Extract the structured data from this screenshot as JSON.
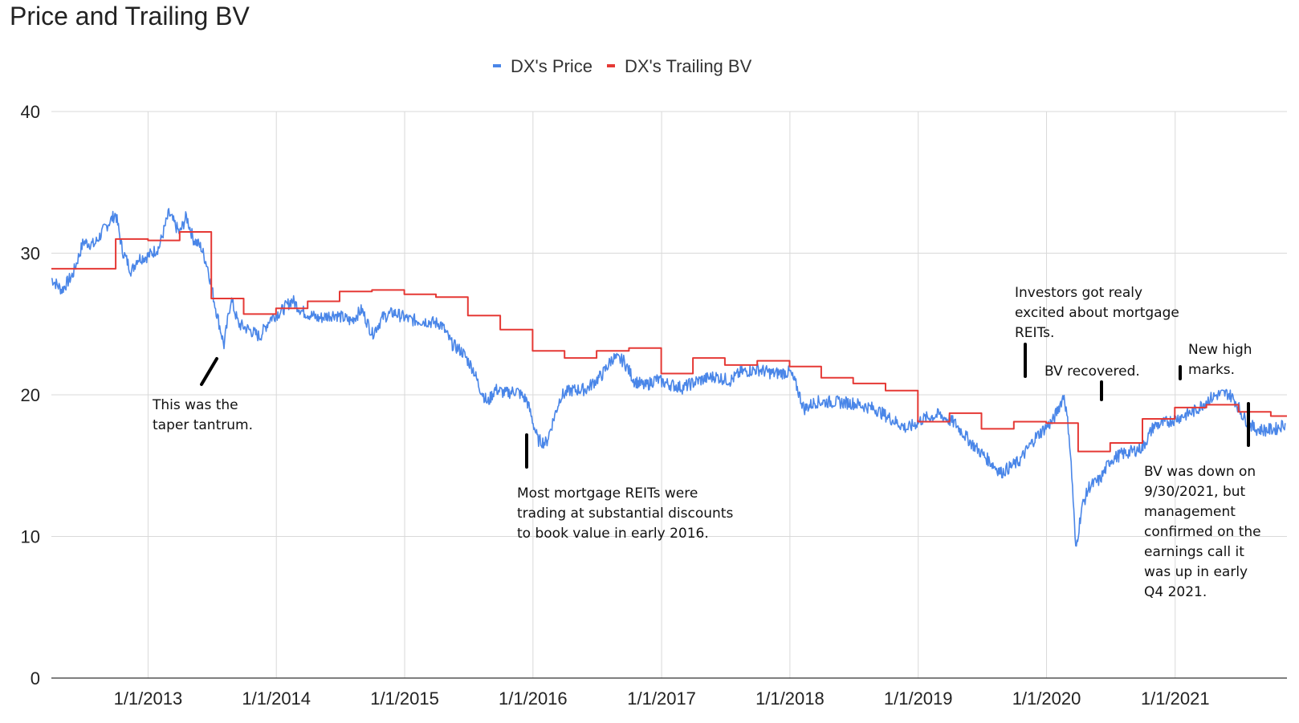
{
  "chart_data": {
    "type": "line",
    "title": "Price and Trailing BV",
    "xlabel": "",
    "ylabel": "",
    "ylim": [
      0,
      40
    ],
    "xlim": [
      "2012-04-01",
      "2021-11-15"
    ],
    "grid": true,
    "legend_position": "top",
    "y_ticks": [
      "0",
      "10",
      "20",
      "30",
      "40"
    ],
    "x_ticks": [
      {
        "date": "2013-01-01",
        "label": "1/1/2013"
      },
      {
        "date": "2014-01-01",
        "label": "1/1/2014"
      },
      {
        "date": "2015-01-01",
        "label": "1/1/2015"
      },
      {
        "date": "2016-01-01",
        "label": "1/1/2016"
      },
      {
        "date": "2017-01-01",
        "label": "1/1/2017"
      },
      {
        "date": "2018-01-01",
        "label": "1/1/2018"
      },
      {
        "date": "2019-01-01",
        "label": "1/1/2019"
      },
      {
        "date": "2020-01-01",
        "label": "1/1/2020"
      },
      {
        "date": "2021-01-01",
        "label": "1/1/2021"
      }
    ],
    "series": [
      {
        "name": "DX's Price",
        "color": "#4a86e8",
        "step": false,
        "points": [
          [
            "2012-04-01",
            28.2
          ],
          [
            "2012-05-01",
            27.4
          ],
          [
            "2012-06-01",
            28.5
          ],
          [
            "2012-07-01",
            30.8
          ],
          [
            "2012-08-01",
            30.6
          ],
          [
            "2012-09-01",
            31.8
          ],
          [
            "2012-10-01",
            32.8
          ],
          [
            "2012-10-20",
            30.2
          ],
          [
            "2012-11-15",
            28.7
          ],
          [
            "2012-12-01",
            29.6
          ],
          [
            "2013-01-01",
            29.8
          ],
          [
            "2013-02-01",
            30.4
          ],
          [
            "2013-03-01",
            32.8
          ],
          [
            "2013-04-01",
            31.4
          ],
          [
            "2013-04-20",
            32.6
          ],
          [
            "2013-05-10",
            31.0
          ],
          [
            "2013-06-01",
            30.4
          ],
          [
            "2013-06-20",
            29.0
          ],
          [
            "2013-07-10",
            26.4
          ],
          [
            "2013-08-05",
            23.5
          ],
          [
            "2013-08-25",
            26.8
          ],
          [
            "2013-09-15",
            25.0
          ],
          [
            "2013-10-15",
            24.6
          ],
          [
            "2013-11-15",
            24.1
          ],
          [
            "2013-12-15",
            25.4
          ],
          [
            "2014-01-15",
            25.9
          ],
          [
            "2014-02-15",
            26.7
          ],
          [
            "2014-03-15",
            25.9
          ],
          [
            "2014-05-01",
            25.4
          ],
          [
            "2014-06-15",
            25.7
          ],
          [
            "2014-08-01",
            25.2
          ],
          [
            "2014-09-01",
            26.0
          ],
          [
            "2014-10-01",
            24.3
          ],
          [
            "2014-11-01",
            25.5
          ],
          [
            "2014-12-01",
            25.8
          ],
          [
            "2015-01-15",
            25.3
          ],
          [
            "2015-03-01",
            25.2
          ],
          [
            "2015-04-15",
            25.0
          ],
          [
            "2015-05-15",
            23.6
          ],
          [
            "2015-06-15",
            23.0
          ],
          [
            "2015-07-15",
            21.8
          ],
          [
            "2015-08-01",
            20.6
          ],
          [
            "2015-08-25",
            19.4
          ],
          [
            "2015-09-15",
            20.4
          ],
          [
            "2015-10-15",
            20.1
          ],
          [
            "2015-11-15",
            20.3
          ],
          [
            "2015-12-15",
            19.6
          ],
          [
            "2016-01-15",
            16.8
          ],
          [
            "2016-02-08",
            16.6
          ],
          [
            "2016-03-01",
            18.4
          ],
          [
            "2016-03-20",
            19.9
          ],
          [
            "2016-04-15",
            20.3
          ],
          [
            "2016-06-01",
            20.4
          ],
          [
            "2016-07-15",
            21.4
          ],
          [
            "2016-08-15",
            22.6
          ],
          [
            "2016-09-15",
            22.4
          ],
          [
            "2016-10-15",
            21.0
          ],
          [
            "2016-11-15",
            20.6
          ],
          [
            "2016-12-15",
            21.1
          ],
          [
            "2017-01-15",
            20.8
          ],
          [
            "2017-03-01",
            20.5
          ],
          [
            "2017-04-15",
            21.0
          ],
          [
            "2017-06-01",
            21.3
          ],
          [
            "2017-07-15",
            21.0
          ],
          [
            "2017-08-15",
            21.6
          ],
          [
            "2017-10-01",
            21.8
          ],
          [
            "2017-11-15",
            21.5
          ],
          [
            "2018-01-01",
            21.6
          ],
          [
            "2018-01-20",
            20.6
          ],
          [
            "2018-02-10",
            19.0
          ],
          [
            "2018-03-15",
            19.5
          ],
          [
            "2018-05-01",
            19.5
          ],
          [
            "2018-07-01",
            19.4
          ],
          [
            "2018-09-01",
            19.0
          ],
          [
            "2018-10-15",
            18.3
          ],
          [
            "2018-12-01",
            17.6
          ],
          [
            "2019-01-15",
            18.3
          ],
          [
            "2019-03-01",
            18.6
          ],
          [
            "2019-04-15",
            18.0
          ],
          [
            "2019-06-01",
            16.6
          ],
          [
            "2019-07-15",
            15.5
          ],
          [
            "2019-08-25",
            14.5
          ],
          [
            "2019-10-15",
            15.3
          ],
          [
            "2019-12-01",
            17.0
          ],
          [
            "2020-01-20",
            18.2
          ],
          [
            "2020-02-20",
            20.0
          ],
          [
            "2020-03-05",
            17.3
          ],
          [
            "2020-03-15",
            13.5
          ],
          [
            "2020-03-24",
            9.0
          ],
          [
            "2020-04-10",
            12.0
          ],
          [
            "2020-05-01",
            13.5
          ],
          [
            "2020-06-01",
            14.0
          ],
          [
            "2020-07-01",
            15.4
          ],
          [
            "2020-08-01",
            15.8
          ],
          [
            "2020-09-01",
            16.0
          ],
          [
            "2020-10-01",
            16.3
          ],
          [
            "2020-11-01",
            17.8
          ],
          [
            "2020-12-01",
            18.0
          ],
          [
            "2021-01-01",
            18.3
          ],
          [
            "2021-02-01",
            18.6
          ],
          [
            "2021-03-01",
            18.9
          ],
          [
            "2021-04-01",
            19.6
          ],
          [
            "2021-05-01",
            20.0
          ],
          [
            "2021-06-01",
            20.1
          ],
          [
            "2021-06-20",
            19.6
          ],
          [
            "2021-07-15",
            18.4
          ],
          [
            "2021-08-15",
            17.6
          ],
          [
            "2021-09-15",
            17.5
          ],
          [
            "2021-10-15",
            17.6
          ],
          [
            "2021-11-10",
            18.0
          ]
        ]
      },
      {
        "name": "DX's Trailing BV",
        "color": "#e53935",
        "step": true,
        "points": [
          [
            "2012-04-01",
            28.9
          ],
          [
            "2012-10-01",
            31.0
          ],
          [
            "2013-01-01",
            30.9
          ],
          [
            "2013-04-01",
            31.5
          ],
          [
            "2013-06-30",
            26.8
          ],
          [
            "2013-09-30",
            25.7
          ],
          [
            "2013-12-31",
            26.1
          ],
          [
            "2014-03-31",
            26.6
          ],
          [
            "2014-06-30",
            27.3
          ],
          [
            "2014-09-30",
            27.4
          ],
          [
            "2014-12-31",
            27.1
          ],
          [
            "2015-03-31",
            26.9
          ],
          [
            "2015-06-30",
            25.6
          ],
          [
            "2015-09-30",
            24.6
          ],
          [
            "2015-12-31",
            23.1
          ],
          [
            "2016-03-31",
            22.6
          ],
          [
            "2016-06-30",
            23.1
          ],
          [
            "2016-09-30",
            23.3
          ],
          [
            "2016-12-31",
            21.5
          ],
          [
            "2017-03-31",
            22.6
          ],
          [
            "2017-06-30",
            22.1
          ],
          [
            "2017-09-30",
            22.4
          ],
          [
            "2017-12-31",
            22.0
          ],
          [
            "2018-03-31",
            21.2
          ],
          [
            "2018-06-30",
            20.8
          ],
          [
            "2018-09-30",
            20.3
          ],
          [
            "2018-12-31",
            18.1
          ],
          [
            "2019-03-31",
            18.7
          ],
          [
            "2019-06-30",
            17.6
          ],
          [
            "2019-09-30",
            18.1
          ],
          [
            "2019-12-31",
            18.0
          ],
          [
            "2020-03-31",
            16.0
          ],
          [
            "2020-06-30",
            16.6
          ],
          [
            "2020-09-30",
            18.3
          ],
          [
            "2020-12-31",
            19.1
          ],
          [
            "2021-03-31",
            19.3
          ],
          [
            "2021-06-30",
            18.8
          ],
          [
            "2021-09-30",
            18.5
          ],
          [
            "2021-11-15",
            18.5
          ]
        ]
      }
    ],
    "annotations": [
      {
        "lines": [
          "This was the",
          "taper tantrum."
        ]
      },
      {
        "lines": [
          "Most mortgage REITs were",
          "trading at substantial discounts",
          "to book value in early 2016."
        ]
      },
      {
        "lines": [
          "Investors got realy",
          "excited about mortgage",
          "REITs."
        ]
      },
      {
        "lines": [
          "BV recovered."
        ]
      },
      {
        "lines": [
          "New high",
          "marks."
        ]
      },
      {
        "lines": [
          "BV was down on",
          "9/30/2021, but",
          "management",
          "confirmed on the",
          "earnings call it",
          "was up in early",
          "Q4 2021."
        ]
      }
    ]
  }
}
